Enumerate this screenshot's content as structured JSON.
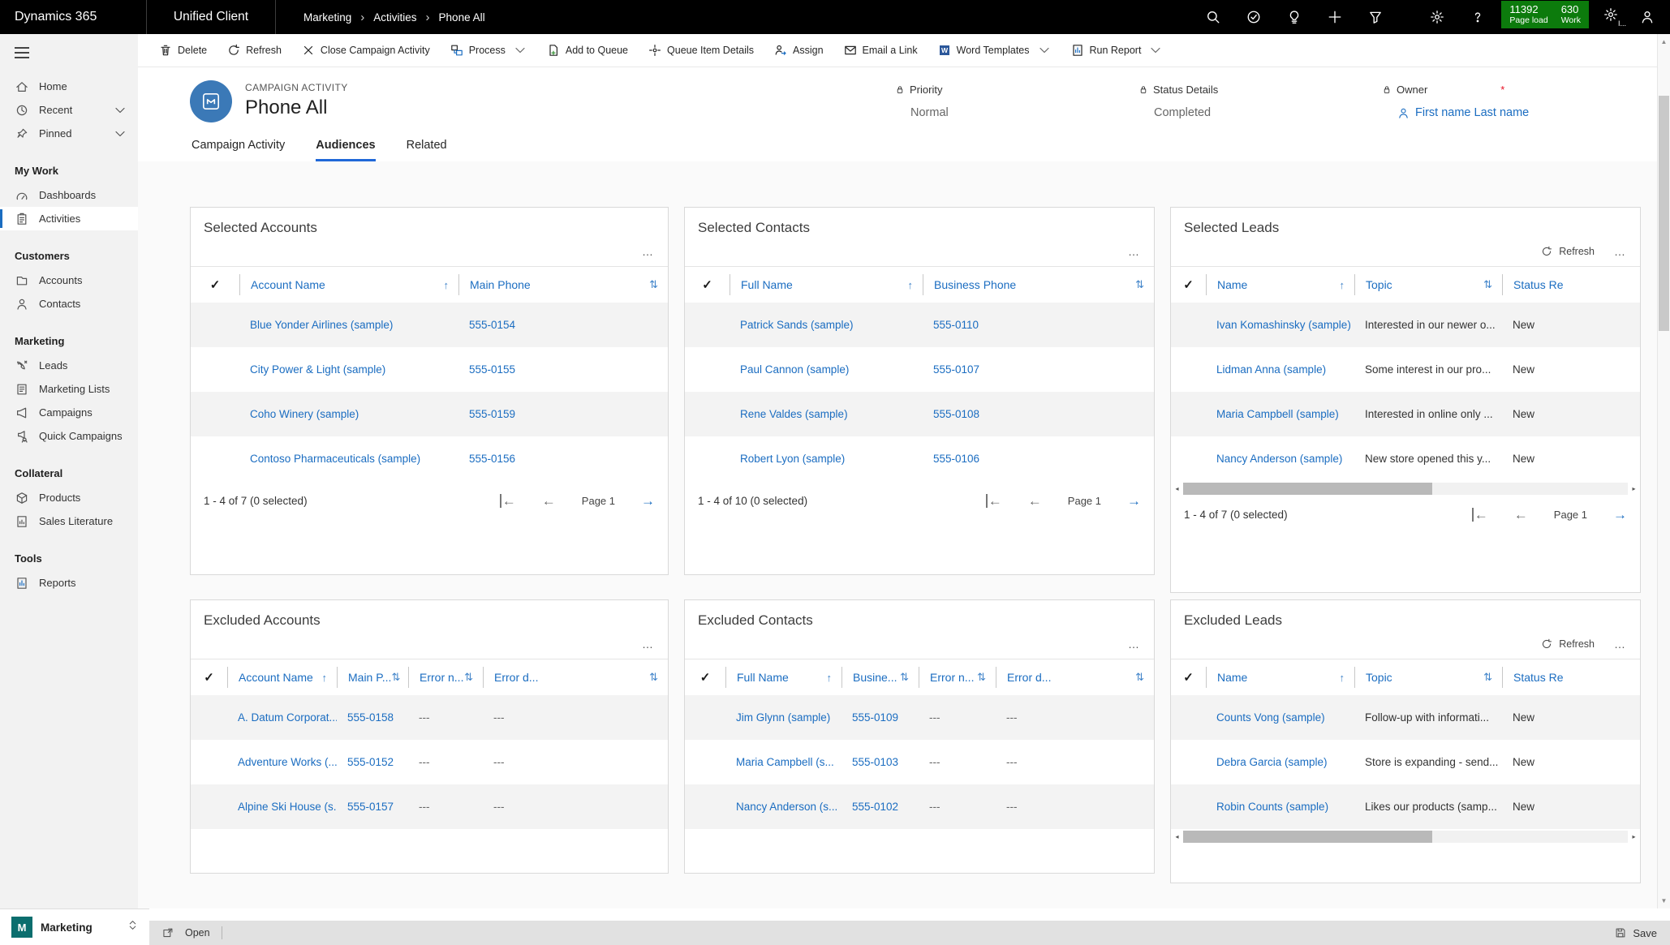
{
  "topbar": {
    "brand": "Dynamics 365",
    "app": "Unified Client",
    "breadcrumb": [
      "Marketing",
      "Activities",
      "Phone All"
    ],
    "right_icons": [
      {
        "name": "search-icon"
      },
      {
        "name": "guided-help-icon"
      },
      {
        "name": "lightbulb-icon"
      },
      {
        "name": "plus-icon"
      },
      {
        "name": "filter-icon"
      },
      {
        "name": "settings-gear-icon"
      },
      {
        "name": "help-icon"
      }
    ],
    "perf_badge": {
      "metric1_value": "11392",
      "metric1_label": "Page load",
      "metric2_value": "630",
      "metric2_label": "Work"
    },
    "perf_label": "I..."
  },
  "command_bar": {
    "items": [
      {
        "label": "Delete",
        "icon": "trash-icon"
      },
      {
        "label": "Refresh",
        "icon": "refresh-icon"
      },
      {
        "label": "Close Campaign Activity",
        "icon": "close-icon"
      },
      {
        "label": "Process",
        "icon": "process-icon",
        "chevron": true
      },
      {
        "label": "Add to Queue",
        "icon": "add-queue-icon"
      },
      {
        "label": "Queue Item Details",
        "icon": "queue-details-icon"
      },
      {
        "label": "Assign",
        "icon": "assign-icon"
      },
      {
        "label": "Email a Link",
        "icon": "email-icon"
      },
      {
        "label": "Word Templates",
        "icon": "word-icon",
        "chevron": true
      },
      {
        "label": "Run Report",
        "icon": "report-icon",
        "chevron": true
      }
    ]
  },
  "sidebar": {
    "top_items": [
      {
        "label": "Home",
        "icon": "home-icon"
      },
      {
        "label": "Recent",
        "icon": "clock-icon",
        "chevron": true
      },
      {
        "label": "Pinned",
        "icon": "pin-icon",
        "chevron": true
      }
    ],
    "sections": [
      {
        "title": "My Work",
        "items": [
          {
            "label": "Dashboards",
            "icon": "dashboard-icon"
          },
          {
            "label": "Activities",
            "icon": "clipboard-icon",
            "active": true
          }
        ]
      },
      {
        "title": "Customers",
        "items": [
          {
            "label": "Accounts",
            "icon": "folder-icon"
          },
          {
            "label": "Contacts",
            "icon": "person-icon"
          }
        ]
      },
      {
        "title": "Marketing",
        "items": [
          {
            "label": "Leads",
            "icon": "phone-icon"
          },
          {
            "label": "Marketing Lists",
            "icon": "list-icon"
          },
          {
            "label": "Campaigns",
            "icon": "megaphone-icon"
          },
          {
            "label": "Quick Campaigns",
            "icon": "quick-campaign-icon"
          }
        ]
      },
      {
        "title": "Collateral",
        "items": [
          {
            "label": "Products",
            "icon": "cube-icon"
          },
          {
            "label": "Sales Literature",
            "icon": "literature-icon"
          }
        ]
      },
      {
        "title": "Tools",
        "items": [
          {
            "label": "Reports",
            "icon": "report-icon"
          }
        ]
      }
    ],
    "area_switcher": {
      "initial": "M",
      "label": "Marketing"
    }
  },
  "record": {
    "entity_label": "CAMPAIGN ACTIVITY",
    "title": "Phone All",
    "fields": [
      {
        "label": "Priority",
        "value": "Normal",
        "locked": true
      },
      {
        "label": "Status Details",
        "value": "Completed",
        "locked": true
      },
      {
        "label": "Owner",
        "value": "First name Last name",
        "locked": true,
        "required": true,
        "link": true
      }
    ]
  },
  "tabs": [
    {
      "label": "Campaign Activity"
    },
    {
      "label": "Audiences",
      "active": true
    },
    {
      "label": "Related"
    }
  ],
  "grid_chrome": {
    "refresh_label": "Refresh",
    "more_label": "…"
  },
  "grids": [
    {
      "title": "Selected Accounts",
      "columns": [
        {
          "label": "Account Name",
          "sort": "asc"
        },
        {
          "label": "Main Phone",
          "sort": "updown"
        }
      ],
      "link_cols": [
        0,
        1
      ],
      "rows": [
        [
          "Blue Yonder Airlines (sample)",
          "555-0154"
        ],
        [
          "City Power & Light (sample)",
          "555-0155"
        ],
        [
          "Coho Winery (sample)",
          "555-0159"
        ],
        [
          "Contoso Pharmaceuticals (sample)",
          "555-0156"
        ]
      ],
      "footer": {
        "summary": "1 - 4 of 7 (0 selected)",
        "page": "Page 1"
      }
    },
    {
      "title": "Selected Contacts",
      "columns": [
        {
          "label": "Full Name",
          "sort": "asc"
        },
        {
          "label": "Business Phone",
          "sort": "updown"
        }
      ],
      "link_cols": [
        0,
        1
      ],
      "rows": [
        [
          "Patrick Sands (sample)",
          "555-0110"
        ],
        [
          "Paul Cannon (sample)",
          "555-0107"
        ],
        [
          "Rene Valdes (sample)",
          "555-0108"
        ],
        [
          "Robert Lyon (sample)",
          "555-0106"
        ]
      ],
      "footer": {
        "summary": "1 - 4 of 10 (0 selected)",
        "page": "Page 1"
      }
    },
    {
      "title": "Selected Leads",
      "refresh": true,
      "hscroll": true,
      "columns": [
        {
          "label": "Name",
          "sort": "asc"
        },
        {
          "label": "Topic",
          "sort": "updown"
        },
        {
          "label": "Status Re",
          "sort": null
        }
      ],
      "link_cols": [
        0
      ],
      "rows": [
        [
          "Ivan Komashinsky (sample)",
          "Interested in our newer o...",
          "New"
        ],
        [
          "Lidman Anna (sample)",
          "Some interest in our pro...",
          "New"
        ],
        [
          "Maria Campbell (sample)",
          "Interested in online only ...",
          "New"
        ],
        [
          "Nancy Anderson (sample)",
          "New store opened this y...",
          "New"
        ]
      ],
      "footer": {
        "summary": "1 - 4 of 7 (0 selected)",
        "page": "Page 1"
      }
    },
    {
      "title": "Excluded Accounts",
      "columns": [
        {
          "label": "Account Name",
          "sort": "asc"
        },
        {
          "label": "Main P...",
          "sort": "updown"
        },
        {
          "label": "Error n...",
          "sort": "updown"
        },
        {
          "label": "Error d...",
          "sort": "updown"
        }
      ],
      "link_cols": [
        0,
        1
      ],
      "rows": [
        [
          "A. Datum Corporat...",
          "555-0158",
          "---",
          "---"
        ],
        [
          "Adventure Works (...",
          "555-0152",
          "---",
          "---"
        ],
        [
          "Alpine Ski House (s...",
          "555-0157",
          "---",
          "---"
        ]
      ]
    },
    {
      "title": "Excluded Contacts",
      "columns": [
        {
          "label": "Full Name",
          "sort": "asc"
        },
        {
          "label": "Busine...",
          "sort": "updown"
        },
        {
          "label": "Error n...",
          "sort": "updown"
        },
        {
          "label": "Error d...",
          "sort": "updown"
        }
      ],
      "link_cols": [
        0,
        1
      ],
      "rows": [
        [
          "Jim Glynn (sample)",
          "555-0109",
          "---",
          "---"
        ],
        [
          "Maria Campbell (s...",
          "555-0103",
          "---",
          "---"
        ],
        [
          "Nancy Anderson (s...",
          "555-0102",
          "---",
          "---"
        ]
      ]
    },
    {
      "title": "Excluded Leads",
      "refresh": true,
      "hscroll": true,
      "columns": [
        {
          "label": "Name",
          "sort": "asc"
        },
        {
          "label": "Topic",
          "sort": "updown"
        },
        {
          "label": "Status Re",
          "sort": null
        }
      ],
      "link_cols": [
        0
      ],
      "rows": [
        [
          "Counts Vong (sample)",
          "Follow-up with informati...",
          "New"
        ],
        [
          "Debra Garcia (sample)",
          "Store is expanding - send...",
          "New"
        ],
        [
          "Robin Counts (sample)",
          "Likes our products (samp...",
          "New"
        ]
      ]
    }
  ],
  "status_bar": {
    "open_label": "Open",
    "save_label": "Save"
  },
  "colors": {
    "accent_blue": "#1b6dc1",
    "tab_underline": "#2068d8",
    "badge_green": "#0c7b0c",
    "area_teal": "#0b6e6e",
    "row_alt": "#f3f3f3",
    "topbar_black": "#000000"
  }
}
